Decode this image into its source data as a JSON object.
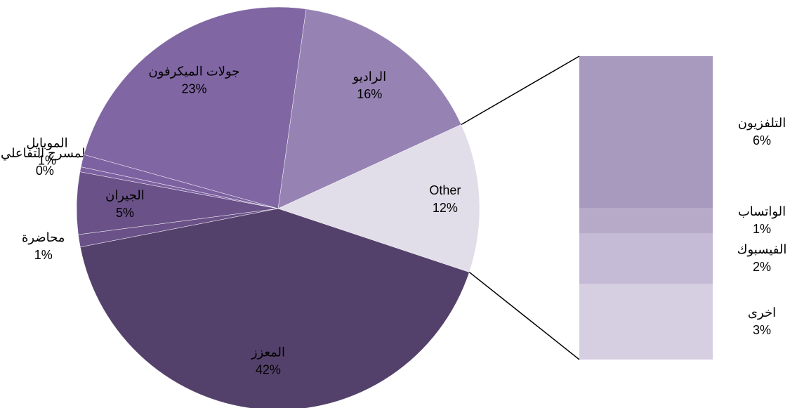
{
  "chart_data": {
    "type": "pie",
    "start_angle": 8,
    "categories": [
      "الراديو",
      "Other",
      "المعزز",
      "محاضرة",
      "الجيران",
      "المسرح التفاعلي",
      "الموبايل",
      "جولات الميكرفون"
    ],
    "values": [
      16,
      12,
      42,
      1,
      5,
      0.4,
      1,
      23
    ],
    "value_labels": [
      "16%",
      "12%",
      "42%",
      "1%",
      "5%",
      "0%",
      "1%",
      "23%"
    ],
    "colors": [
      "#9683b3",
      "#e1dde9",
      "#54416b",
      "#6a5188",
      "#6a5188",
      "#7d62a1",
      "#7d62a1",
      "#8066a3"
    ],
    "breakdown": {
      "of": "Other",
      "categories": [
        "التلفزيون",
        "الواتساب",
        "الفيسبوك",
        "اخرى"
      ],
      "values": [
        6,
        1,
        2,
        3
      ],
      "value_labels": [
        "6%",
        "1%",
        "2%",
        "3%"
      ],
      "colors": [
        "#a899bf",
        "#b7aac9",
        "#c6bbd6",
        "#d6cfe1"
      ]
    }
  }
}
